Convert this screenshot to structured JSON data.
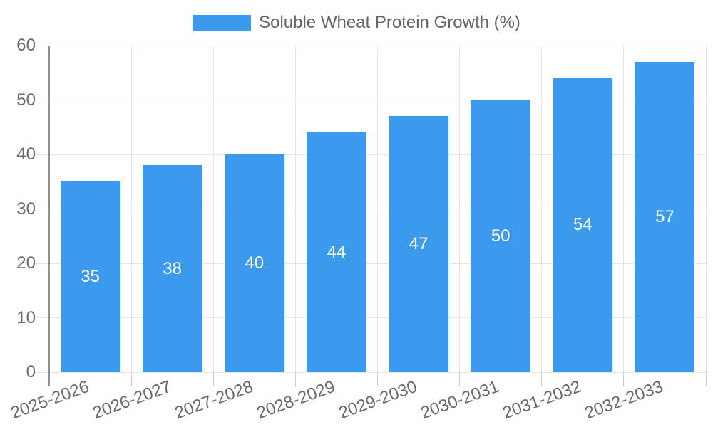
{
  "legend": {
    "label": "Soluble Wheat Protein Growth (%)"
  },
  "colors": {
    "bar": "#3b99ee",
    "grid": "#e6e6e6",
    "tick": "#cccccc",
    "axis_border": "#919191",
    "axis_text": "#6b6b6b",
    "legend_text": "#666666",
    "value_label": "#ffffff",
    "background": "#ffffff"
  },
  "chart_data": {
    "type": "bar",
    "title": "Soluble Wheat Protein Growth (%)",
    "categories": [
      "2025-2026",
      "2026-2027",
      "2027-2028",
      "2028-2029",
      "2029-2030",
      "2030-2031",
      "2031-2032",
      "2032-2033"
    ],
    "values": [
      35,
      38,
      40,
      44,
      47,
      50,
      54,
      57
    ],
    "xlabel": "",
    "ylabel": "",
    "ylim": [
      0,
      60
    ],
    "ytick_step": 10,
    "ytick_labels": [
      "0",
      "10",
      "20",
      "30",
      "40",
      "50",
      "60"
    ],
    "grid": true,
    "legend_position": "top-center",
    "value_labels_position": "inside-center",
    "bar_color": "#3b99ee"
  }
}
